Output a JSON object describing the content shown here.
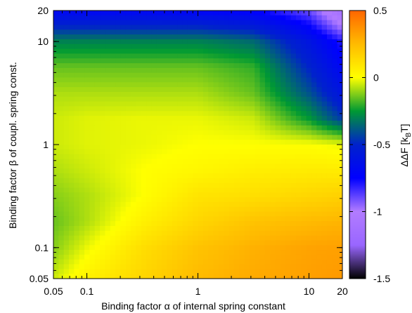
{
  "chart_data": {
    "type": "heatmap",
    "xlabel": "Binding factor α of internal spring constant",
    "ylabel": "Binding factor β of coupl. spring const.",
    "colorbar_label": {
      "prefix": "ΔΔF [k",
      "subscript": "B",
      "suffix": "T]"
    },
    "x_scale": "log",
    "y_scale": "log",
    "xlim": [
      0.05,
      20
    ],
    "ylim": [
      0.05,
      20
    ],
    "x_ticks": [
      {
        "value": 0.05,
        "label": "0.05"
      },
      {
        "value": 0.1,
        "label": "0.1"
      },
      {
        "value": 1,
        "label": "1"
      },
      {
        "value": 10,
        "label": "10"
      },
      {
        "value": 20,
        "label": "20"
      }
    ],
    "y_ticks": [
      {
        "value": 0.05,
        "label": "0.05"
      },
      {
        "value": 0.1,
        "label": "0.1"
      },
      {
        "value": 1,
        "label": "1"
      },
      {
        "value": 10,
        "label": "10"
      },
      {
        "value": 20,
        "label": "20"
      }
    ],
    "color_range": [
      -1.5,
      0.5
    ],
    "colorbar_ticks": [
      {
        "value": 0.5,
        "label": "0.5"
      },
      {
        "value": 0,
        "label": "0"
      },
      {
        "value": -0.5,
        "label": "-0.5"
      },
      {
        "value": -1,
        "label": "-1"
      },
      {
        "value": -1.5,
        "label": "-1.5"
      }
    ],
    "colormap": [
      {
        "value": -1.5,
        "color": "#000000"
      },
      {
        "value": -1.25,
        "color": "#9966ff"
      },
      {
        "value": -1.0,
        "color": "#b27cff"
      },
      {
        "value": -0.75,
        "color": "#0000ff"
      },
      {
        "value": -0.5,
        "color": "#0022cc"
      },
      {
        "value": -0.25,
        "color": "#009933"
      },
      {
        "value": 0.0,
        "color": "#ffff00"
      },
      {
        "value": 0.25,
        "color": "#ffbb00"
      },
      {
        "value": 0.5,
        "color": "#ff6600"
      }
    ],
    "grid_x_log10": [
      -1.301,
      -1.0,
      -0.5,
      0.0,
      0.5,
      1.0,
      1.301
    ],
    "grid_y_log10": [
      -1.301,
      -1.0,
      -0.75,
      -0.5,
      -0.25,
      0.0,
      0.25,
      0.5,
      0.75,
      1.0,
      1.15,
      1.301
    ],
    "values": [
      [
        -0.05,
        0.05,
        0.15,
        0.25,
        0.3,
        0.33,
        0.35
      ],
      [
        -0.12,
        -0.02,
        0.12,
        0.22,
        0.28,
        0.32,
        0.33
      ],
      [
        -0.15,
        -0.08,
        0.05,
        0.15,
        0.22,
        0.25,
        0.27
      ],
      [
        -0.12,
        -0.08,
        0.0,
        0.1,
        0.12,
        0.15,
        0.17
      ],
      [
        -0.08,
        -0.05,
        0.0,
        0.03,
        0.06,
        0.07,
        0.07
      ],
      [
        -0.05,
        -0.03,
        -0.02,
        0.0,
        0.0,
        0.0,
        -0.02
      ],
      [
        -0.05,
        -0.03,
        -0.02,
        -0.02,
        -0.05,
        -0.25,
        -0.45
      ],
      [
        -0.08,
        -0.08,
        -0.08,
        -0.08,
        -0.15,
        -0.4,
        -0.6
      ],
      [
        -0.15,
        -0.15,
        -0.15,
        -0.15,
        -0.2,
        -0.5,
        -0.7
      ],
      [
        -0.3,
        -0.3,
        -0.3,
        -0.3,
        -0.35,
        -0.6,
        -0.8
      ],
      [
        -0.5,
        -0.5,
        -0.5,
        -0.5,
        -0.55,
        -0.75,
        -1.0
      ],
      [
        -0.7,
        -0.7,
        -0.7,
        -0.72,
        -0.75,
        -0.9,
        -1.15
      ]
    ]
  }
}
